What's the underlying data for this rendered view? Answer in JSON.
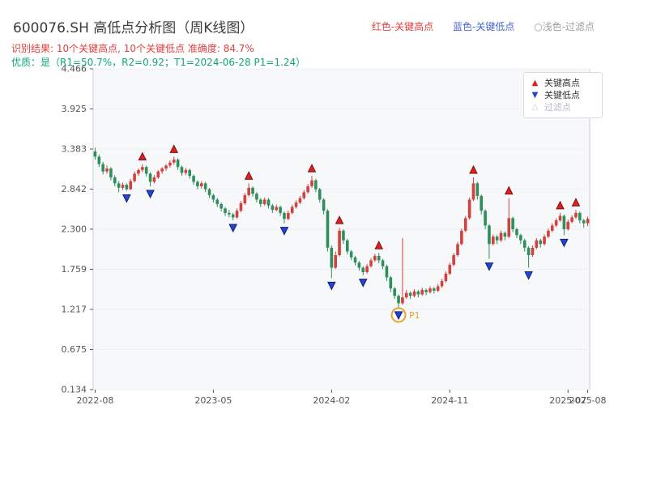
{
  "header": {
    "title": "600076.SH 高低点分析图（周K线图）",
    "legend_top": {
      "high_label": "红色-关键高点",
      "low_label": "蓝色-关键低点",
      "filter_label": "○浅色-过滤点"
    },
    "result_line": "识别结果: 10个关键高点, 10个关键低点  准确度: 84.7%",
    "quality_line": "优质：是（R1=50.7%，R2=0.92；T1=2024-06-28 P1=1.24）"
  },
  "chart_legend": {
    "high": "关键高点",
    "low": "关键低点",
    "filtered": "过滤点"
  },
  "colors": {
    "title_text": "#3c3c3c",
    "red_text": "#e04040",
    "blue_text": "#4666d1",
    "gray_text": "#9aa0a6",
    "green_text": "#0ca678",
    "candle_up": "#d1413d",
    "candle_down": "#2f8e5b",
    "marker_high": "#e02020",
    "marker_high_edge": "#7a1010",
    "marker_low": "#2545cc",
    "marker_low_edge": "#0f1f7a",
    "p1": "#f0a22e",
    "plot_bg": "#f7f8fa",
    "grid": "#eef0f3",
    "axis_line": "#c9ced6",
    "axis_text": "#555555"
  },
  "chart_data": {
    "type": "candlestick",
    "title": "600076.SH 高低点分析图（周K线图）",
    "ylim": [
      0.134,
      4.466
    ],
    "y_ticks": [
      0.134,
      0.675,
      1.217,
      1.759,
      2.3,
      2.842,
      3.383,
      3.925,
      4.466
    ],
    "x_ticks": [
      {
        "index": 0,
        "label": "2022-08"
      },
      {
        "index": 30,
        "label": "2023-05"
      },
      {
        "index": 60,
        "label": "2024-02"
      },
      {
        "index": 90,
        "label": "2024-11"
      },
      {
        "index": 120,
        "label": "2025-07"
      },
      {
        "index": 125,
        "label": "2025-08"
      }
    ],
    "candles": [
      [
        3.35,
        3.4,
        3.24,
        3.28
      ],
      [
        3.28,
        3.31,
        3.14,
        3.18
      ],
      [
        3.18,
        3.21,
        3.04,
        3.08
      ],
      [
        3.08,
        3.16,
        3.05,
        3.12
      ],
      [
        3.12,
        3.14,
        2.96,
        3.0
      ],
      [
        3.0,
        3.03,
        2.88,
        2.92
      ],
      [
        2.92,
        2.95,
        2.8,
        2.86
      ],
      [
        2.86,
        2.93,
        2.83,
        2.9
      ],
      [
        2.9,
        2.92,
        2.82,
        2.84
      ],
      [
        2.84,
        2.98,
        2.83,
        2.95
      ],
      [
        2.95,
        3.08,
        2.93,
        3.05
      ],
      [
        3.05,
        3.12,
        3.02,
        3.1
      ],
      [
        3.1,
        3.18,
        3.07,
        3.14
      ],
      [
        3.14,
        3.16,
        3.01,
        3.05
      ],
      [
        3.05,
        3.07,
        2.88,
        2.94
      ],
      [
        2.94,
        3.03,
        2.92,
        3.0
      ],
      [
        3.0,
        3.1,
        2.98,
        3.08
      ],
      [
        3.08,
        3.14,
        3.05,
        3.12
      ],
      [
        3.12,
        3.18,
        3.09,
        3.16
      ],
      [
        3.16,
        3.23,
        3.13,
        3.2
      ],
      [
        3.2,
        3.28,
        3.17,
        3.24
      ],
      [
        3.24,
        3.26,
        3.1,
        3.14
      ],
      [
        3.14,
        3.16,
        3.02,
        3.06
      ],
      [
        3.06,
        3.13,
        3.03,
        3.1
      ],
      [
        3.1,
        3.12,
        2.98,
        3.02
      ],
      [
        3.02,
        3.04,
        2.9,
        2.94
      ],
      [
        2.94,
        2.96,
        2.84,
        2.88
      ],
      [
        2.88,
        2.95,
        2.85,
        2.92
      ],
      [
        2.92,
        2.94,
        2.8,
        2.84
      ],
      [
        2.84,
        2.86,
        2.72,
        2.76
      ],
      [
        2.76,
        2.78,
        2.66,
        2.7
      ],
      [
        2.7,
        2.72,
        2.6,
        2.64
      ],
      [
        2.64,
        2.66,
        2.54,
        2.58
      ],
      [
        2.58,
        2.6,
        2.48,
        2.52
      ],
      [
        2.52,
        2.56,
        2.46,
        2.5
      ],
      [
        2.5,
        2.52,
        2.42,
        2.46
      ],
      [
        2.46,
        2.58,
        2.44,
        2.55
      ],
      [
        2.55,
        2.68,
        2.53,
        2.65
      ],
      [
        2.65,
        2.79,
        2.63,
        2.76
      ],
      [
        2.76,
        2.92,
        2.74,
        2.86
      ],
      [
        2.86,
        2.88,
        2.74,
        2.78
      ],
      [
        2.78,
        2.8,
        2.66,
        2.7
      ],
      [
        2.7,
        2.72,
        2.6,
        2.64
      ],
      [
        2.64,
        2.73,
        2.62,
        2.7
      ],
      [
        2.7,
        2.72,
        2.58,
        2.62
      ],
      [
        2.62,
        2.64,
        2.52,
        2.56
      ],
      [
        2.56,
        2.63,
        2.54,
        2.6
      ],
      [
        2.6,
        2.62,
        2.48,
        2.52
      ],
      [
        2.52,
        2.54,
        2.38,
        2.44
      ],
      [
        2.44,
        2.55,
        2.42,
        2.52
      ],
      [
        2.52,
        2.63,
        2.5,
        2.6
      ],
      [
        2.6,
        2.69,
        2.58,
        2.66
      ],
      [
        2.66,
        2.75,
        2.64,
        2.72
      ],
      [
        2.72,
        2.83,
        2.7,
        2.8
      ],
      [
        2.8,
        2.91,
        2.78,
        2.88
      ],
      [
        2.88,
        3.02,
        2.86,
        2.96
      ],
      [
        2.96,
        2.98,
        2.8,
        2.84
      ],
      [
        2.84,
        2.86,
        2.66,
        2.7
      ],
      [
        2.7,
        2.72,
        2.5,
        2.55
      ],
      [
        2.55,
        2.57,
        2.0,
        2.05
      ],
      [
        2.05,
        2.08,
        1.64,
        1.78
      ],
      [
        1.78,
        2.0,
        1.76,
        1.95
      ],
      [
        1.95,
        2.32,
        1.93,
        2.28
      ],
      [
        2.28,
        2.3,
        2.1,
        2.15
      ],
      [
        2.15,
        2.17,
        1.96,
        2.0
      ],
      [
        2.0,
        2.02,
        1.88,
        1.92
      ],
      [
        1.92,
        1.94,
        1.81,
        1.85
      ],
      [
        1.85,
        1.87,
        1.74,
        1.78
      ],
      [
        1.78,
        1.8,
        1.68,
        1.72
      ],
      [
        1.72,
        1.83,
        1.7,
        1.8
      ],
      [
        1.8,
        1.91,
        1.78,
        1.88
      ],
      [
        1.88,
        1.97,
        1.86,
        1.94
      ],
      [
        1.94,
        1.98,
        1.84,
        1.88
      ],
      [
        1.88,
        1.9,
        1.76,
        1.8
      ],
      [
        1.8,
        1.82,
        1.6,
        1.65
      ],
      [
        1.65,
        1.67,
        1.45,
        1.5
      ],
      [
        1.5,
        1.52,
        1.36,
        1.4
      ],
      [
        1.4,
        1.42,
        1.24,
        1.3
      ],
      [
        1.3,
        2.18,
        1.28,
        1.38
      ],
      [
        1.38,
        1.48,
        1.36,
        1.44
      ],
      [
        1.44,
        1.46,
        1.36,
        1.4
      ],
      [
        1.4,
        1.49,
        1.38,
        1.46
      ],
      [
        1.46,
        1.48,
        1.38,
        1.42
      ],
      [
        1.42,
        1.51,
        1.4,
        1.48
      ],
      [
        1.48,
        1.5,
        1.41,
        1.45
      ],
      [
        1.45,
        1.53,
        1.43,
        1.5
      ],
      [
        1.5,
        1.52,
        1.43,
        1.47
      ],
      [
        1.47,
        1.56,
        1.45,
        1.53
      ],
      [
        1.53,
        1.63,
        1.51,
        1.6
      ],
      [
        1.6,
        1.73,
        1.58,
        1.7
      ],
      [
        1.7,
        1.85,
        1.68,
        1.82
      ],
      [
        1.82,
        1.98,
        1.8,
        1.95
      ],
      [
        1.95,
        2.13,
        1.93,
        2.1
      ],
      [
        2.1,
        2.31,
        2.08,
        2.28
      ],
      [
        2.28,
        2.48,
        2.26,
        2.45
      ],
      [
        2.45,
        2.73,
        2.43,
        2.7
      ],
      [
        2.7,
        3.0,
        2.68,
        2.92
      ],
      [
        2.92,
        2.94,
        2.7,
        2.75
      ],
      [
        2.75,
        2.77,
        2.5,
        2.55
      ],
      [
        2.55,
        2.57,
        2.3,
        2.35
      ],
      [
        2.35,
        2.37,
        1.9,
        2.1
      ],
      [
        2.1,
        2.23,
        2.08,
        2.2
      ],
      [
        2.2,
        2.22,
        2.1,
        2.15
      ],
      [
        2.15,
        2.28,
        2.13,
        2.25
      ],
      [
        2.25,
        2.27,
        2.15,
        2.2
      ],
      [
        2.2,
        2.72,
        2.18,
        2.45
      ],
      [
        2.45,
        2.47,
        2.26,
        2.3
      ],
      [
        2.3,
        2.32,
        2.18,
        2.22
      ],
      [
        2.22,
        2.24,
        2.1,
        2.15
      ],
      [
        2.15,
        2.17,
        2.0,
        2.05
      ],
      [
        2.05,
        2.07,
        1.78,
        1.95
      ],
      [
        1.95,
        2.08,
        1.93,
        2.05
      ],
      [
        2.05,
        2.18,
        2.03,
        2.15
      ],
      [
        2.15,
        2.17,
        2.05,
        2.1
      ],
      [
        2.1,
        2.23,
        2.08,
        2.2
      ],
      [
        2.2,
        2.31,
        2.18,
        2.28
      ],
      [
        2.28,
        2.38,
        2.26,
        2.35
      ],
      [
        2.35,
        2.45,
        2.33,
        2.42
      ],
      [
        2.42,
        2.52,
        2.4,
        2.48
      ],
      [
        2.48,
        2.5,
        2.22,
        2.3
      ],
      [
        2.3,
        2.43,
        2.28,
        2.4
      ],
      [
        2.4,
        2.49,
        2.38,
        2.46
      ],
      [
        2.46,
        2.56,
        2.44,
        2.52
      ],
      [
        2.52,
        2.54,
        2.38,
        2.42
      ],
      [
        2.42,
        2.44,
        2.32,
        2.38
      ],
      [
        2.38,
        2.47,
        2.34,
        2.44
      ]
    ],
    "key_highs": [
      12,
      20,
      39,
      55,
      62,
      72,
      96,
      105,
      118,
      122
    ],
    "key_lows": [
      8,
      14,
      35,
      48,
      60,
      68,
      77,
      100,
      110,
      119
    ],
    "p1_marker": {
      "index": 77,
      "label": "P1",
      "price": 1.24
    }
  }
}
